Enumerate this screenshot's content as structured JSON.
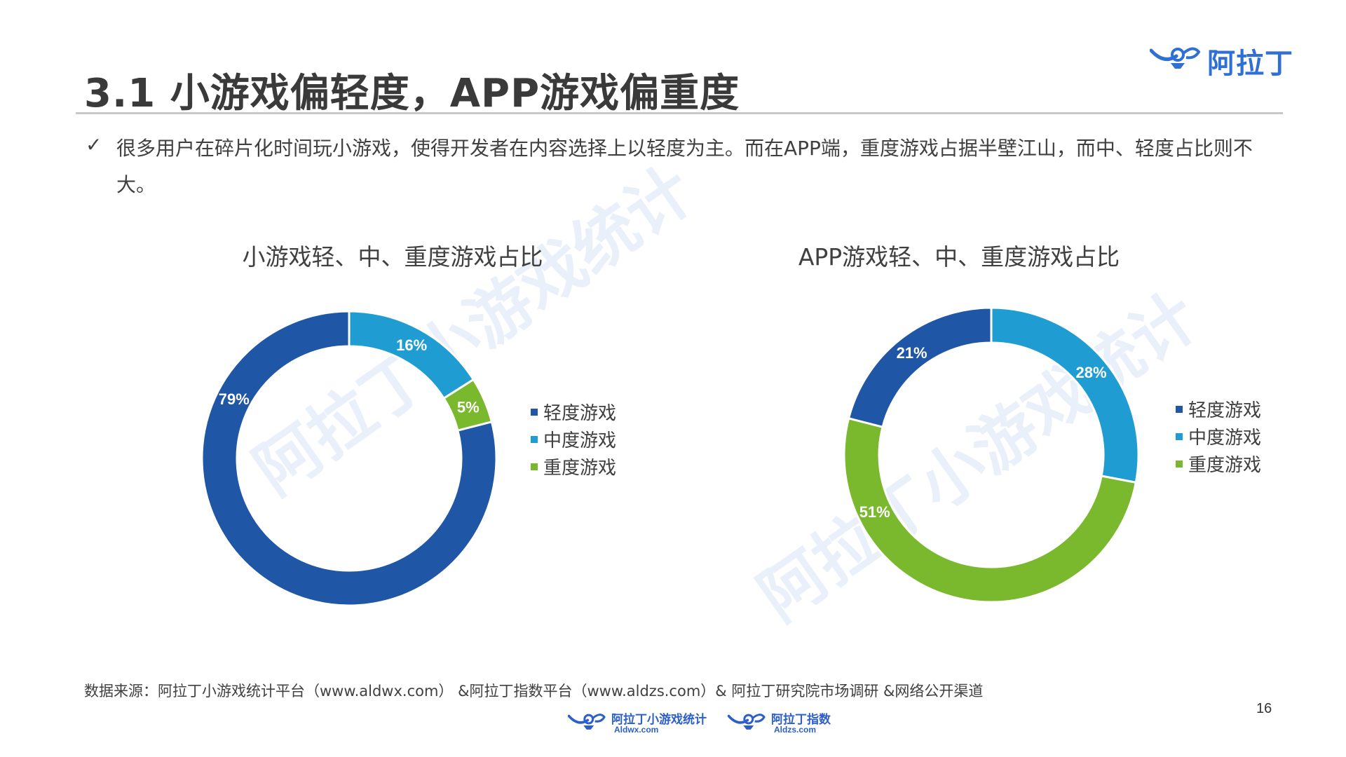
{
  "brand": {
    "name": "阿拉丁"
  },
  "title": "3.1 小游戏偏轻度，APP游戏偏重度",
  "bullet": {
    "mark": "✓",
    "text": "很多用户在碎片化时间玩小游戏，使得开发者在内容选择上以轻度为主。而在APP端，重度游戏占据半壁江山，而中、轻度占比则不大。"
  },
  "watermark": [
    "阿拉丁小游戏统计",
    "阿拉丁小游戏统计"
  ],
  "colors": {
    "light": "#1f56a6",
    "medium": "#1f9dd2",
    "heavy": "#7ab82e",
    "accent": "#2f6fd6"
  },
  "chart_data": [
    {
      "type": "pie",
      "style": "donut",
      "title": "小游戏轻、中、重度游戏占比",
      "legend_position": "right",
      "categories": [
        "轻度游戏",
        "中度游戏",
        "重度游戏"
      ],
      "values": [
        79,
        16,
        5
      ],
      "order_clockwise_from_top": [
        "中度游戏",
        "重度游戏",
        "轻度游戏"
      ],
      "labels": [
        "79%",
        "16%",
        "5%"
      ]
    },
    {
      "type": "pie",
      "style": "donut",
      "title": "APP游戏轻、中、重度游戏占比",
      "legend_position": "right",
      "categories": [
        "轻度游戏",
        "中度游戏",
        "重度游戏"
      ],
      "values": [
        21,
        28,
        51
      ],
      "order_clockwise_from_top": [
        "中度游戏",
        "重度游戏",
        "轻度游戏"
      ],
      "labels": [
        "21%",
        "28%",
        "51%"
      ]
    }
  ],
  "source": "数据来源：阿拉丁小游戏统计平台（www.aldwx.com） &阿拉丁指数平台（www.aldzs.com）& 阿拉丁研究院市场调研 &网络公开渠道",
  "page_number": "16",
  "footer_logos": [
    {
      "name": "阿拉丁小游戏统计",
      "domain": "Aldwx.com"
    },
    {
      "name": "阿拉丁指数",
      "domain": "Aldzs.com"
    }
  ]
}
